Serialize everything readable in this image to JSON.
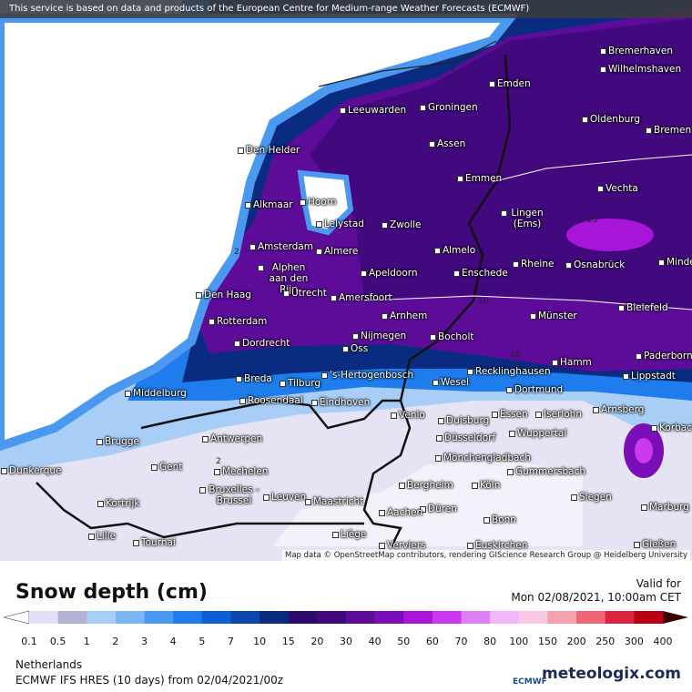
{
  "header": {
    "notice": "This service is based on data and products of the European Centre for Medium-range Weather Forecasts (ECMWF)"
  },
  "map": {
    "cities": [
      "Bremerhaven",
      "Wilhelmshaven",
      "Emden",
      "Groningen",
      "Leeuwarden",
      "Oldenburg",
      "Bremen",
      "Den Helder",
      "Assen",
      "Emmen",
      "Vechta",
      "Alkmaar",
      "Hoorn",
      "Lingen (Ems)",
      "Zwolle",
      "Lelystad",
      "Amsterdam",
      "Almere",
      "Almelo",
      "Rheine",
      "Osnabrück",
      "Minden",
      "Apeldoorn",
      "Enschede",
      "Alphen aan den Rijn",
      "Den Haag",
      "Utrecht",
      "Amersfoort",
      "Bielefeld",
      "Rotterdam",
      "Arnhem",
      "Münster",
      "Nijmegen",
      "Bocholt",
      "Dordrecht",
      "Oss",
      "Hamm",
      "Paderborn",
      "Lippstadt",
      "'s-Hertogenbosch",
      "Recklinghausen",
      "Breda",
      "Tilburg",
      "Wesel",
      "Dortmund",
      "Middelburg",
      "Roosendaal",
      "Eindhoven",
      "Arnsberg",
      "Korbach",
      "Venlo",
      "Duisburg",
      "Essen",
      "Iserlohn",
      "Wuppertal",
      "Düsseldorf",
      "Antwerpen",
      "Brugge",
      "Mönchengladbach",
      "Gent",
      "Dunkerque",
      "Mechelen",
      "Gummersbach",
      "Bergheim",
      "Köln",
      "Kortrijk",
      "Bruxelles - Brussel",
      "Leuven",
      "Maastricht",
      "Siegen",
      "Düren",
      "Marburg",
      "Aachen",
      "Bonn",
      "Lille",
      "Liège",
      "Tournai",
      "Verviers",
      "Euskirchen",
      "Gießen"
    ],
    "contour_labels": [
      "2",
      "2",
      "10",
      "10",
      "25",
      "2"
    ],
    "attribution": "Map data © OpenStreetMap contributors, rendering GIScience Research Group @ Heidelberg University"
  },
  "legend": {
    "title": "Snow depth (cm)",
    "valid_label": "Valid for",
    "valid_time": "Mon 02/08/2021, 10:00am CET",
    "ticks": [
      0.1,
      0.5,
      1,
      2,
      3,
      4,
      5,
      7,
      10,
      15,
      20,
      30,
      40,
      50,
      60,
      70,
      80,
      100,
      150,
      200,
      250,
      300,
      400
    ],
    "under_color": "#ffffff",
    "over_color": "#3c0000",
    "colors": [
      "#e2e0f6",
      "#b4b2d2",
      "#a8cef8",
      "#7ab6f6",
      "#4a98f0",
      "#1e7cec",
      "#0c60d4",
      "#0a48ac",
      "#0a2c80",
      "#2c0a6e",
      "#42087e",
      "#5c0c98",
      "#7a0eb8",
      "#a814d8",
      "#cc38ee",
      "#e07ef6",
      "#f0b8f8",
      "#f8c8e4",
      "#f6a0b0",
      "#ee6676",
      "#dc2440",
      "#bc0014"
    ]
  },
  "footer": {
    "region": "Netherlands",
    "model": "ECMWF IFS HRES (10 days) from 02/04/2021/00z",
    "ecmwf": "ECMWF",
    "brand": "meteologix.com"
  }
}
